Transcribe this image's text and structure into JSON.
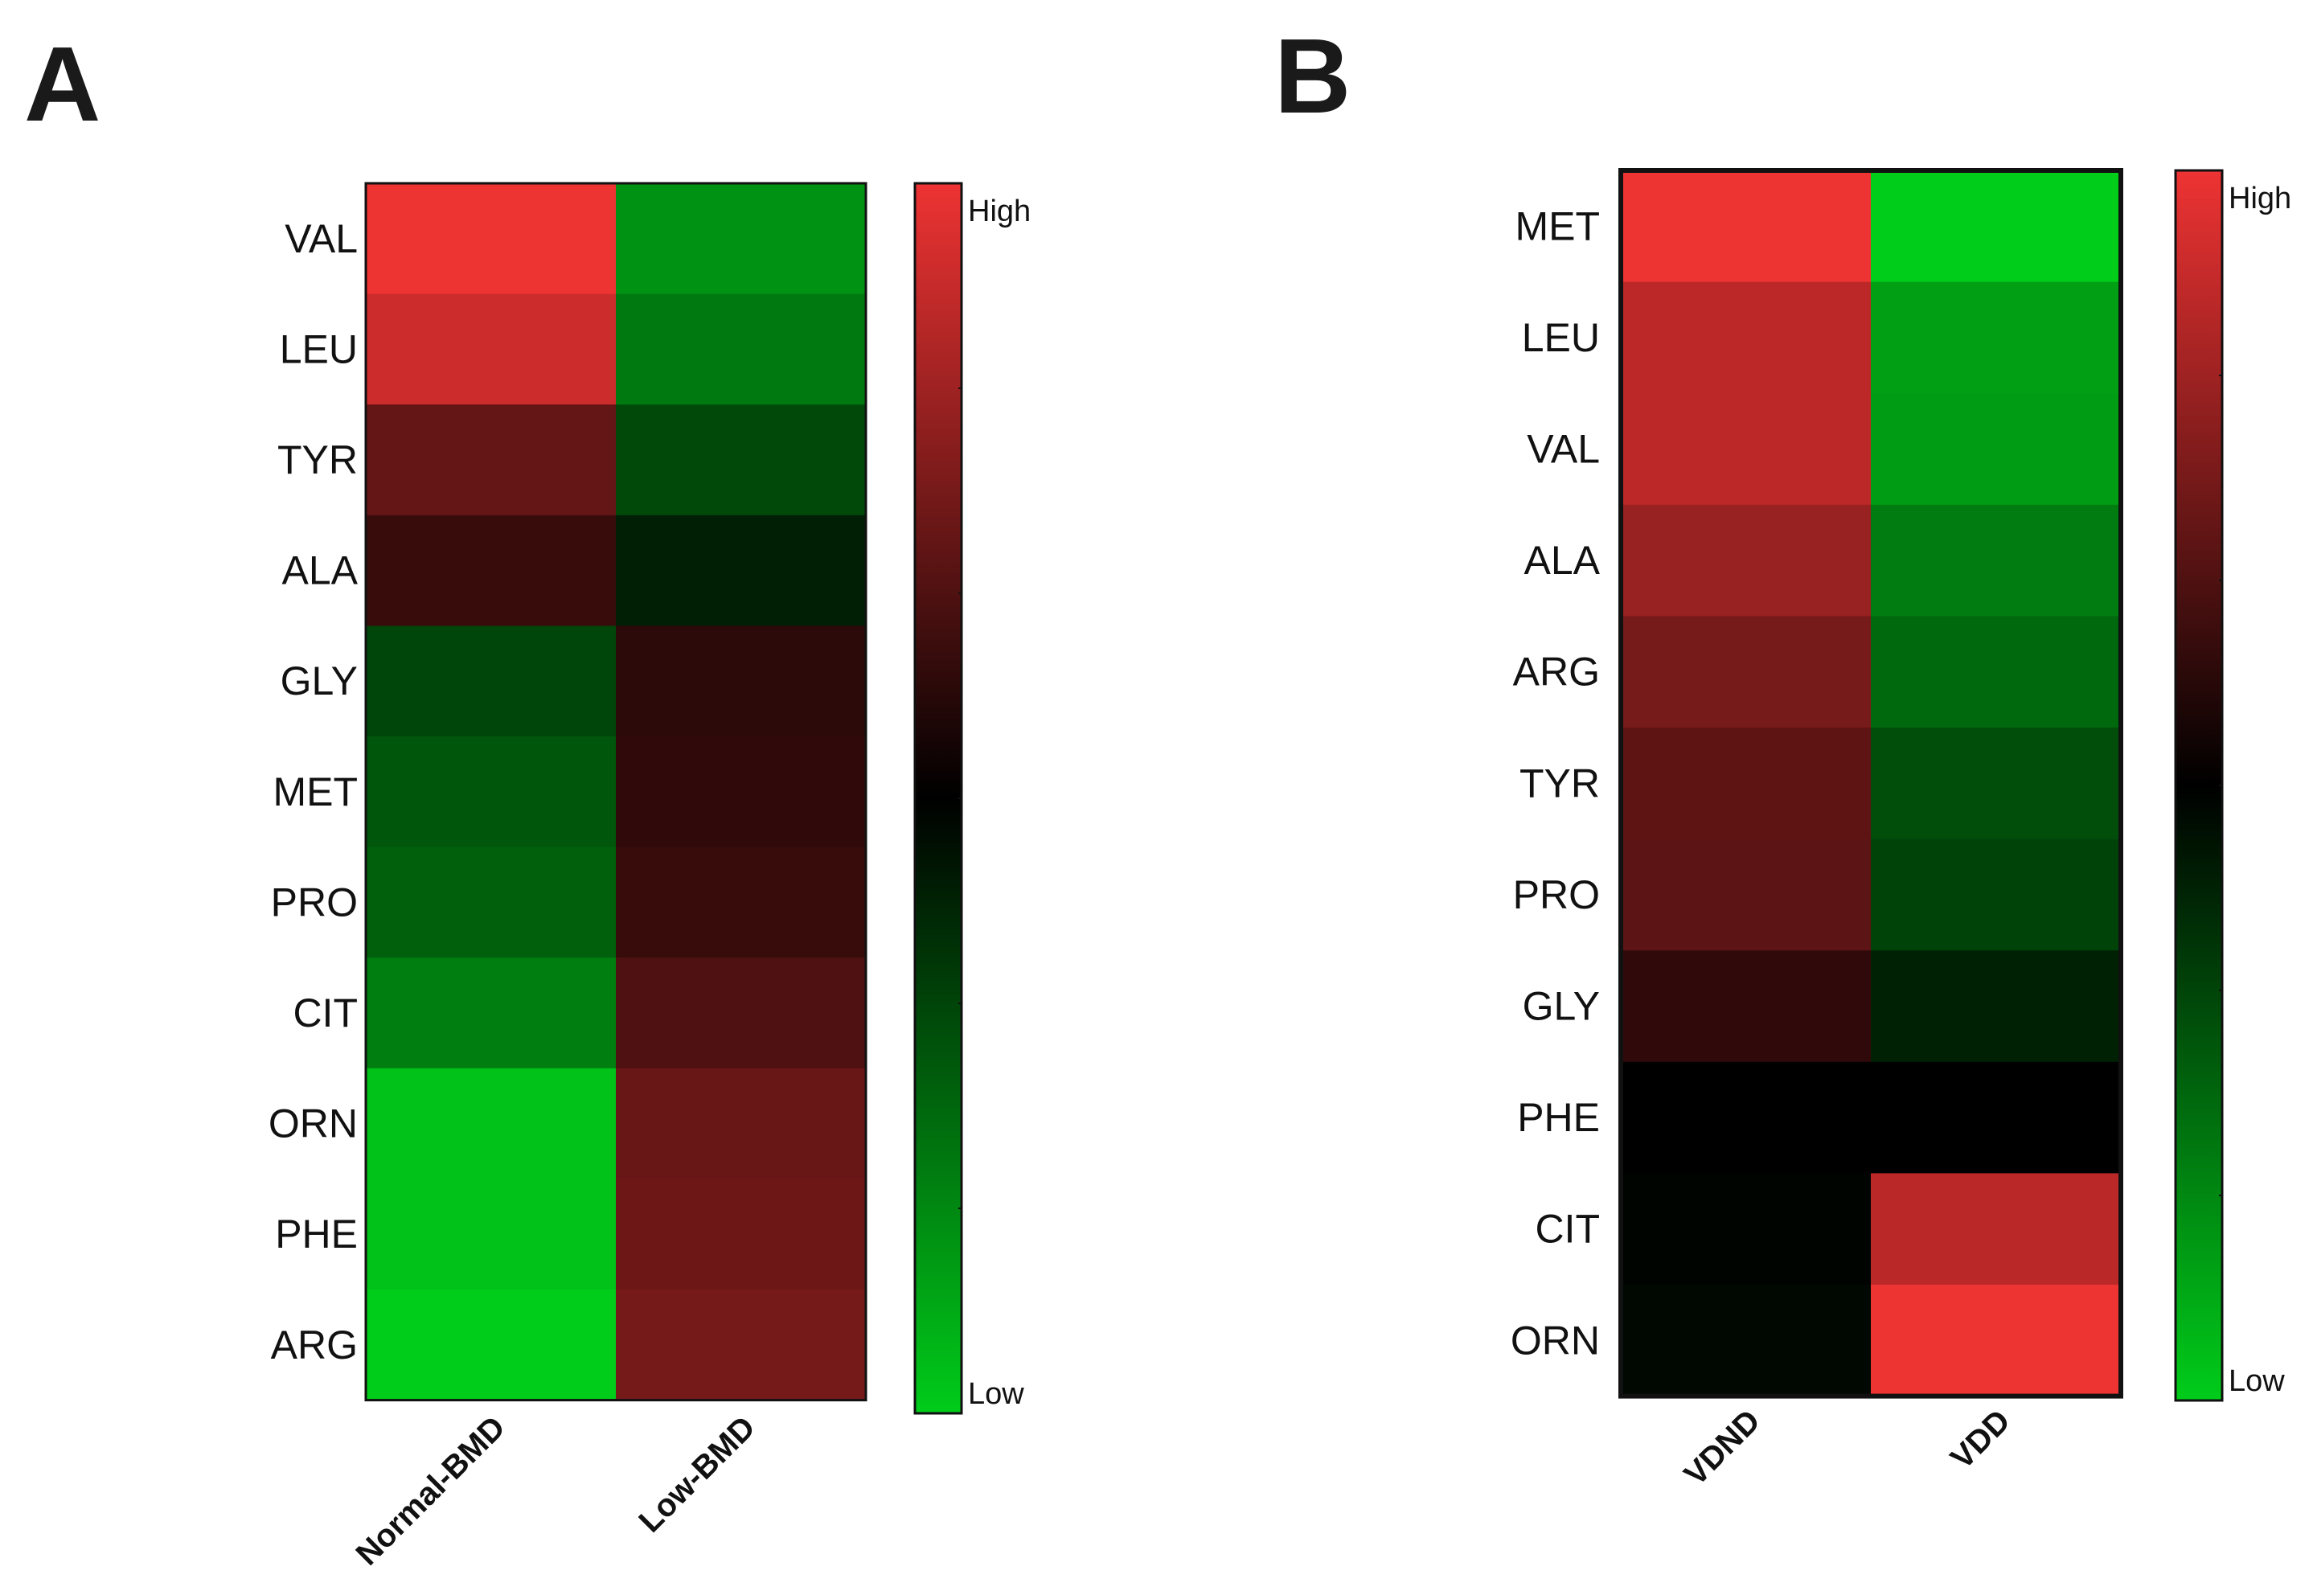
{
  "chart_data": [
    {
      "type": "heatmap",
      "panel_label": "A",
      "rows": [
        "VAL",
        "LEU",
        "TYR",
        "ALA",
        "GLY",
        "MET",
        "PRO",
        "CIT",
        "ORN",
        "PHE",
        "ARG"
      ],
      "columns": [
        "Normal-BMD",
        "Low-BMD"
      ],
      "values": [
        [
          1.0,
          -0.72
        ],
        [
          0.86,
          -0.6
        ],
        [
          0.42,
          -0.36
        ],
        [
          0.24,
          -0.15
        ],
        [
          -0.34,
          0.19
        ],
        [
          -0.42,
          0.2
        ],
        [
          -0.47,
          0.24
        ],
        [
          -0.62,
          0.33
        ],
        [
          -0.95,
          0.44
        ],
        [
          -0.95,
          0.46
        ],
        [
          -1.0,
          0.49
        ]
      ],
      "scale": {
        "min": -1,
        "max": 1,
        "low_color": "#00cc1a",
        "mid_color": "#000000",
        "high_color": "#ee3333"
      },
      "legend": {
        "high_label": "High",
        "low_label": "Low"
      }
    },
    {
      "type": "heatmap",
      "panel_label": "B",
      "rows": [
        "MET",
        "LEU",
        "VAL",
        "ALA",
        "ARG",
        "TYR",
        "PRO",
        "GLY",
        "PHE",
        "CIT",
        "ORN"
      ],
      "columns": [
        "VDND",
        "VDD"
      ],
      "values": [
        [
          1.0,
          -1.0
        ],
        [
          0.79,
          -0.78
        ],
        [
          0.79,
          -0.77
        ],
        [
          0.64,
          -0.61
        ],
        [
          0.5,
          -0.51
        ],
        [
          0.4,
          -0.38
        ],
        [
          0.39,
          -0.33
        ],
        [
          0.2,
          -0.16
        ],
        [
          0.0,
          0.0
        ],
        [
          -0.02,
          0.78
        ],
        [
          -0.04,
          1.0
        ]
      ],
      "scale": {
        "min": -1,
        "max": 1,
        "low_color": "#00cc1a",
        "mid_color": "#000000",
        "high_color": "#ee3333"
      },
      "legend": {
        "high_label": "High",
        "low_label": "Low"
      }
    }
  ]
}
